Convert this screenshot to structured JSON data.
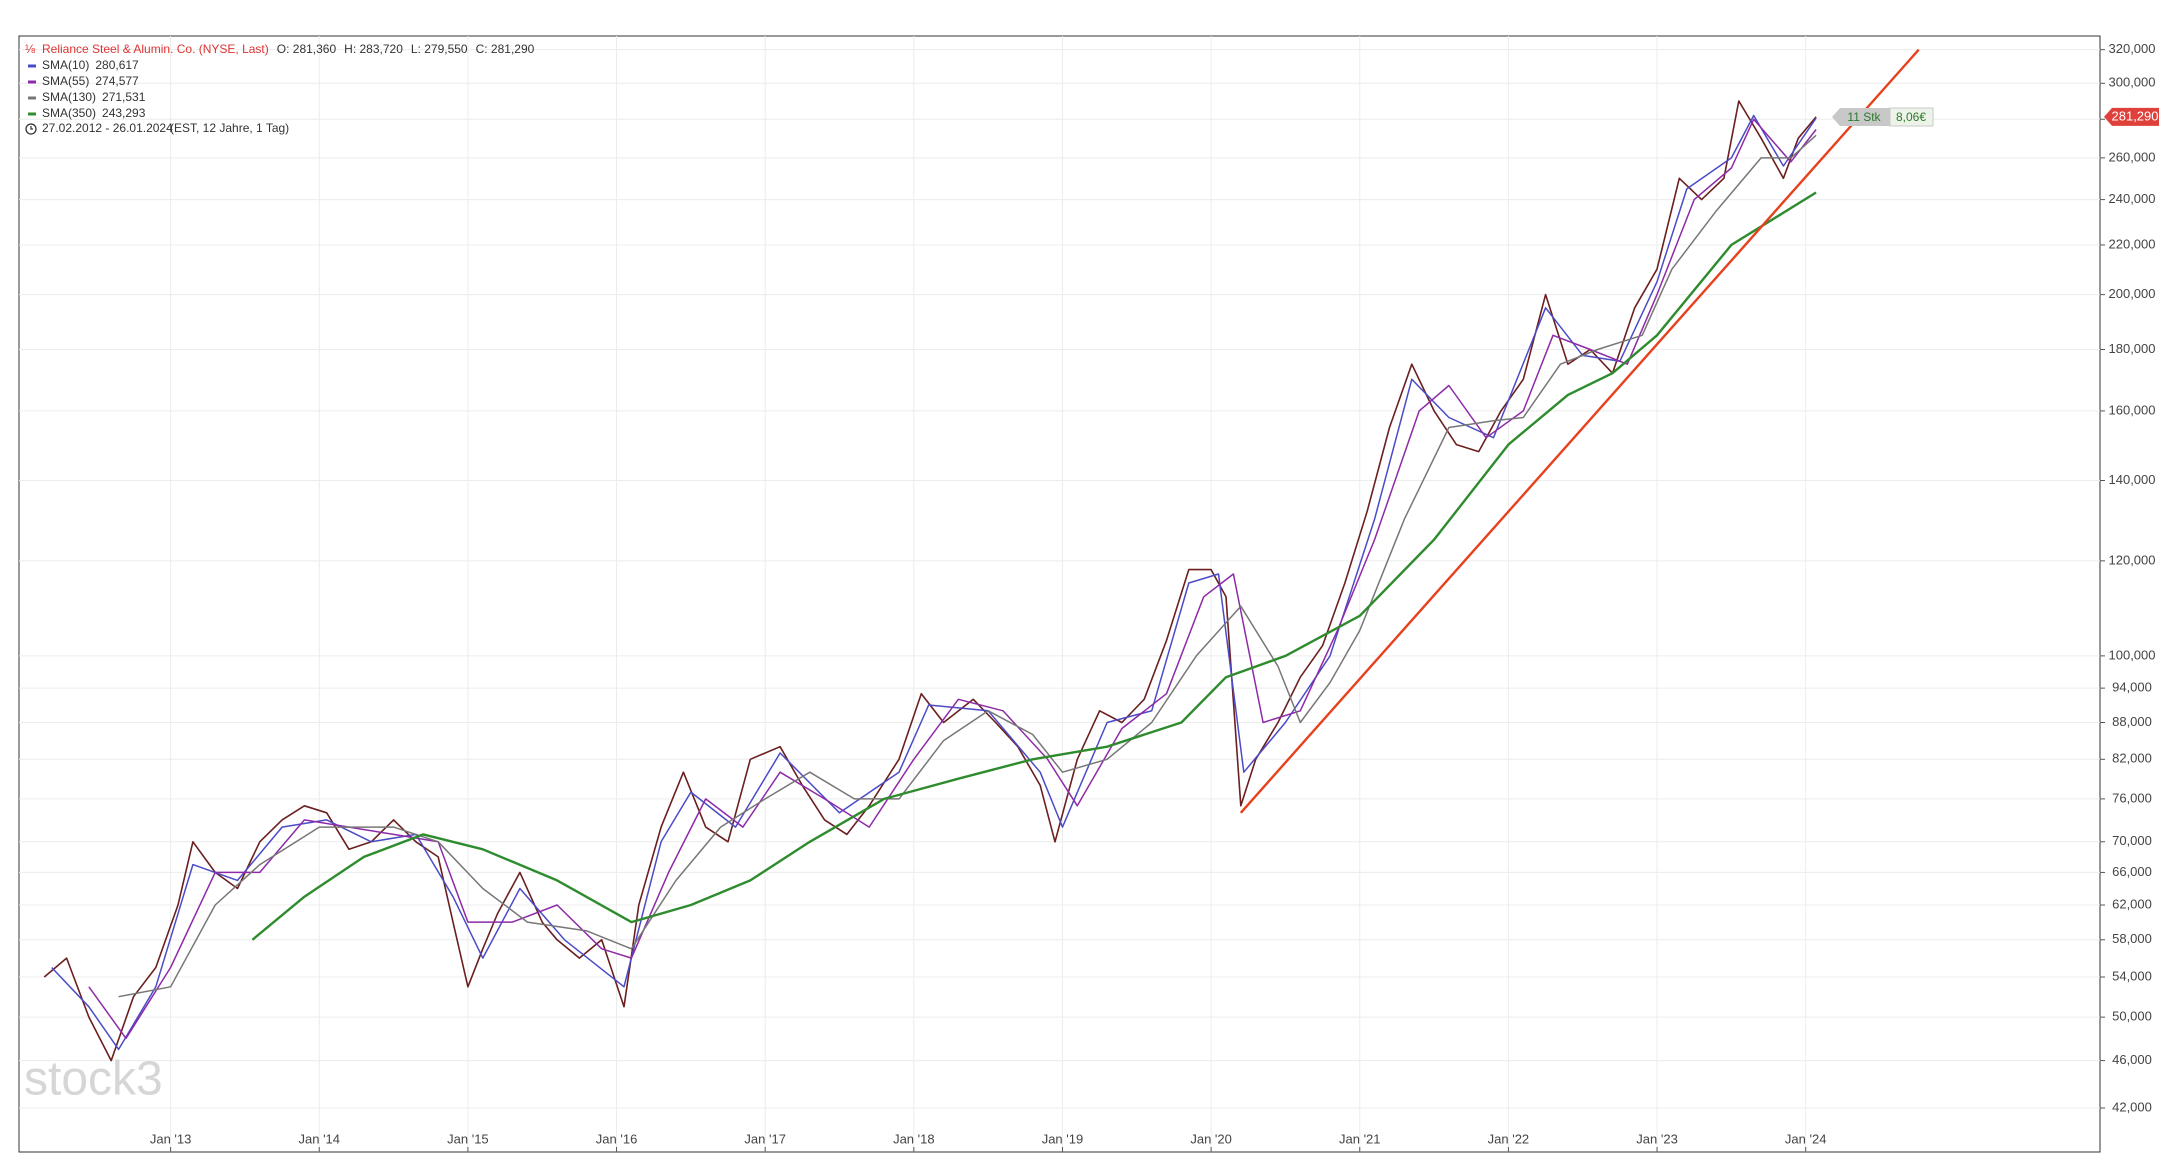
{
  "chart_data": {
    "type": "line",
    "title": "Reliance Steel & Alumin. Co. (NYSE, Last)",
    "ohlc": [
      "O: 281,360",
      "H: 283,720",
      "L: 279,550",
      "C: 281,290"
    ],
    "date_range": "27.02.2012 - 26.01.2024",
    "range_info": "(EST, 12 Jahre, 1 Tag)",
    "position_qty": "11 Stk",
    "position_value": "8,06€",
    "watermark": "stock3",
    "log_scale": true,
    "grid": true,
    "xlim": [
      2011.98,
      2025.98
    ],
    "ylim": [
      38.6,
      328.5
    ],
    "xticks": [
      {
        "value": 2013,
        "label": "Jan '13"
      },
      {
        "value": 2014,
        "label": "Jan '14"
      },
      {
        "value": 2015,
        "label": "Jan '15"
      },
      {
        "value": 2016,
        "label": "Jan '16"
      },
      {
        "value": 2017,
        "label": "Jan '17"
      },
      {
        "value": 2018,
        "label": "Jan '18"
      },
      {
        "value": 2019,
        "label": "Jan '19"
      },
      {
        "value": 2020,
        "label": "Jan '20"
      },
      {
        "value": 2021,
        "label": "Jan '21"
      },
      {
        "value": 2022,
        "label": "Jan '22"
      },
      {
        "value": 2023,
        "label": "Jan '23"
      },
      {
        "value": 2024,
        "label": "Jan '24"
      }
    ],
    "yticks": [
      {
        "value": 42,
        "label": "42,000"
      },
      {
        "value": 46,
        "label": "46,000"
      },
      {
        "value": 50,
        "label": "50,000"
      },
      {
        "value": 54,
        "label": "54,000"
      },
      {
        "value": 58,
        "label": "58,000"
      },
      {
        "value": 62,
        "label": "62,000"
      },
      {
        "value": 66,
        "label": "66,000"
      },
      {
        "value": 70,
        "label": "70,000"
      },
      {
        "value": 76,
        "label": "76,000"
      },
      {
        "value": 82,
        "label": "82,000"
      },
      {
        "value": 88,
        "label": "88,000"
      },
      {
        "value": 94,
        "label": "94,000"
      },
      {
        "value": 100,
        "label": "100,000"
      },
      {
        "value": 120,
        "label": "120,000"
      },
      {
        "value": 140,
        "label": "140,000"
      },
      {
        "value": 160,
        "label": "160,000"
      },
      {
        "value": 180,
        "label": "180,000"
      },
      {
        "value": 200,
        "label": "200,000"
      },
      {
        "value": 220,
        "label": "220,000"
      },
      {
        "value": 240,
        "label": "240,000"
      },
      {
        "value": 260,
        "label": "260,000"
      },
      {
        "value": 280,
        "label": "280,000"
      },
      {
        "value": 300,
        "label": "300,000"
      },
      {
        "value": 320,
        "label": "320,000"
      }
    ],
    "price": {
      "color": "#6b1f1f",
      "last_value": 281.29,
      "last_label": "281,290",
      "x": [
        2012.15,
        2012.3,
        2012.45,
        2012.6,
        2012.75,
        2012.9,
        2013.05,
        2013.15,
        2013.3,
        2013.45,
        2013.6,
        2013.75,
        2013.9,
        2014.05,
        2014.2,
        2014.35,
        2014.5,
        2014.65,
        2014.8,
        2014.9,
        2015.0,
        2015.1,
        2015.2,
        2015.35,
        2015.5,
        2015.6,
        2015.75,
        2015.9,
        2016.05,
        2016.15,
        2016.3,
        2016.45,
        2016.6,
        2016.75,
        2016.9,
        2017.1,
        2017.25,
        2017.4,
        2017.55,
        2017.7,
        2017.9,
        2018.05,
        2018.2,
        2018.4,
        2018.55,
        2018.7,
        2018.85,
        2018.95,
        2019.1,
        2019.25,
        2019.4,
        2019.55,
        2019.7,
        2019.85,
        2020.0,
        2020.1,
        2020.2,
        2020.3,
        2020.45,
        2020.6,
        2020.75,
        2020.9,
        2021.05,
        2021.2,
        2021.35,
        2021.5,
        2021.65,
        2021.8,
        2021.95,
        2022.1,
        2022.25,
        2022.4,
        2022.55,
        2022.7,
        2022.85,
        2023.0,
        2023.15,
        2023.3,
        2023.45,
        2023.55,
        2023.7,
        2023.85,
        2023.95,
        2024.07
      ],
      "values": [
        54,
        56,
        50,
        46,
        52,
        55,
        62,
        70,
        66,
        64,
        70,
        73,
        75,
        74,
        69,
        70,
        73,
        70,
        68,
        60,
        53,
        57,
        61,
        66,
        60,
        58,
        56,
        58,
        51,
        62,
        72,
        80,
        72,
        70,
        82,
        84,
        78,
        73,
        71,
        75,
        82,
        93,
        88,
        92,
        88,
        84,
        78,
        70,
        82,
        90,
        88,
        92,
        103,
        118,
        118,
        112,
        75,
        82,
        88,
        96,
        102,
        115,
        132,
        155,
        175,
        160,
        150,
        148,
        160,
        170,
        200,
        175,
        180,
        172,
        195,
        210,
        250,
        240,
        250,
        290,
        270,
        250,
        270,
        281.29
      ]
    },
    "series": [
      {
        "name": "SMA(10)",
        "color": "#4b4bc8",
        "last_label": "280,617",
        "x": [
          2012.2,
          2012.45,
          2012.65,
          2012.9,
          2013.15,
          2013.45,
          2013.75,
          2014.05,
          2014.35,
          2014.65,
          2014.9,
          2015.1,
          2015.35,
          2015.65,
          2016.05,
          2016.3,
          2016.5,
          2016.8,
          2017.1,
          2017.5,
          2017.9,
          2018.1,
          2018.5,
          2018.85,
          2019.0,
          2019.3,
          2019.6,
          2019.85,
          2020.05,
          2020.22,
          2020.5,
          2020.8,
          2021.1,
          2021.35,
          2021.6,
          2021.9,
          2022.25,
          2022.5,
          2022.75,
          2023.0,
          2023.2,
          2023.5,
          2023.65,
          2023.85,
          2024.07
        ],
        "values": [
          55,
          51,
          47,
          53,
          67,
          65,
          72,
          73,
          70,
          71,
          63,
          56,
          64,
          58,
          53,
          70,
          77,
          72,
          83,
          74,
          80,
          91,
          90,
          80,
          72,
          88,
          90,
          115,
          117,
          80,
          88,
          100,
          130,
          170,
          158,
          152,
          195,
          178,
          176,
          205,
          245,
          260,
          282,
          256,
          280.617
        ]
      },
      {
        "name": "SMA(55)",
        "color": "#8e2aa8",
        "last_label": "274,577",
        "x": [
          2012.45,
          2012.7,
          2013.0,
          2013.3,
          2013.6,
          2013.9,
          2014.2,
          2014.5,
          2014.8,
          2015.0,
          2015.3,
          2015.6,
          2015.9,
          2016.1,
          2016.35,
          2016.6,
          2016.85,
          2017.1,
          2017.4,
          2017.7,
          2018.0,
          2018.3,
          2018.6,
          2018.9,
          2019.1,
          2019.4,
          2019.7,
          2019.95,
          2020.15,
          2020.35,
          2020.6,
          2020.85,
          2021.1,
          2021.4,
          2021.6,
          2021.85,
          2022.1,
          2022.3,
          2022.55,
          2022.8,
          2023.0,
          2023.25,
          2023.5,
          2023.65,
          2023.9,
          2024.07
        ],
        "values": [
          53,
          48,
          55,
          66,
          66,
          73,
          72,
          71,
          70,
          60,
          60,
          62,
          57,
          56,
          66,
          76,
          72,
          80,
          76,
          72,
          82,
          92,
          90,
          82,
          75,
          87,
          93,
          112,
          117,
          88,
          90,
          105,
          125,
          160,
          168,
          152,
          160,
          185,
          180,
          175,
          200,
          240,
          255,
          280,
          258,
          274.577
        ]
      },
      {
        "name": "SMA(130)",
        "color": "#777777",
        "last_label": "271,531",
        "x": [
          2012.65,
          2013.0,
          2013.3,
          2013.6,
          2014.0,
          2014.5,
          2014.8,
          2015.1,
          2015.4,
          2015.8,
          2016.1,
          2016.4,
          2016.7,
          2017.0,
          2017.3,
          2017.6,
          2017.9,
          2018.2,
          2018.5,
          2018.8,
          2019.0,
          2019.3,
          2019.6,
          2019.9,
          2020.2,
          2020.45,
          2020.6,
          2020.8,
          2021.0,
          2021.3,
          2021.6,
          2021.9,
          2022.1,
          2022.35,
          2022.6,
          2022.9,
          2023.1,
          2023.4,
          2023.7,
          2023.9,
          2024.07
        ],
        "values": [
          52,
          53,
          62,
          67,
          72,
          72,
          70,
          64,
          60,
          59,
          57,
          65,
          72,
          76,
          80,
          76,
          76,
          85,
          90,
          86,
          80,
          82,
          88,
          100,
          110,
          98,
          88,
          95,
          105,
          130,
          155,
          157,
          158,
          175,
          180,
          185,
          210,
          235,
          260,
          260,
          271.531
        ]
      },
      {
        "name": "SMA(350)",
        "color": "#2e8b2e",
        "last_label": "243,293",
        "x": [
          2013.55,
          2013.9,
          2014.3,
          2014.7,
          2015.1,
          2015.6,
          2016.1,
          2016.5,
          2016.9,
          2017.3,
          2017.8,
          2018.3,
          2018.8,
          2019.3,
          2019.8,
          2020.1,
          2020.5,
          2021.0,
          2021.5,
          2022.0,
          2022.4,
          2022.7,
          2023.0,
          2023.5,
          2024.07
        ],
        "values": [
          58,
          63,
          68,
          71,
          69,
          65,
          60,
          62,
          65,
          70,
          76,
          79,
          82,
          84,
          88,
          96,
          100,
          108,
          125,
          150,
          165,
          172,
          185,
          220,
          243.293
        ]
      }
    ],
    "trendline": {
      "color": "#e8401c",
      "x": [
        2020.2,
        2024.76
      ],
      "values": [
        74,
        320
      ]
    }
  }
}
